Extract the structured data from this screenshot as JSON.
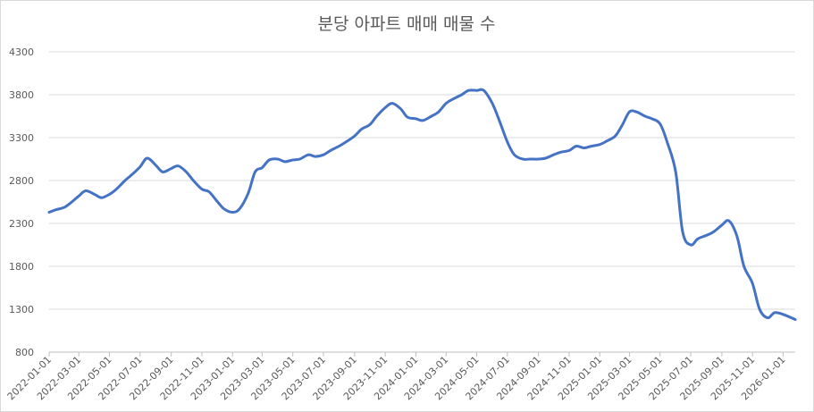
{
  "chart_data": {
    "type": "line",
    "title": "분당 아파트 매매 매물 수",
    "xlabel": "",
    "ylabel": "",
    "ylim": [
      800,
      4300
    ],
    "yticks": [
      800,
      1300,
      1800,
      2300,
      2800,
      3300,
      3800,
      4300
    ],
    "xlim": [
      "2022-01-01",
      "2026-01-25"
    ],
    "xticks": [
      "2022-01-01",
      "2022-03-01",
      "2022-05-01",
      "2022-07-01",
      "2022-09-01",
      "2022-11-01",
      "2023-01-01",
      "2023-03-01",
      "2023-05-01",
      "2023-07-01",
      "2023-09-01",
      "2023-11-01",
      "2024-01-01",
      "2024-03-01",
      "2024-05-01",
      "2024-07-01",
      "2024-09-01",
      "2024-11-01",
      "2025-01-01",
      "2025-03-01",
      "2025-05-01",
      "2025-07-01",
      "2025-09-01",
      "2025-11-01",
      "2026-01-01"
    ],
    "grid": true,
    "legend": "none",
    "color": "#4472c4",
    "series": [
      {
        "x": [
          "2022-01-01",
          "2022-01-15",
          "2022-02-01",
          "2022-02-15",
          "2022-03-01",
          "2022-03-15",
          "2022-04-01",
          "2022-04-15",
          "2022-05-01",
          "2022-05-15",
          "2022-06-01",
          "2022-06-15",
          "2022-07-01",
          "2022-07-15",
          "2022-08-01",
          "2022-08-15",
          "2022-09-01",
          "2022-09-15",
          "2022-10-01",
          "2022-10-15",
          "2022-11-01",
          "2022-11-15",
          "2022-12-01",
          "2022-12-15",
          "2023-01-01",
          "2023-01-15",
          "2023-02-01",
          "2023-02-15",
          "2023-03-01",
          "2023-03-15",
          "2023-04-01",
          "2023-04-15",
          "2023-05-01",
          "2023-05-15",
          "2023-06-01",
          "2023-06-15",
          "2023-07-01",
          "2023-07-15",
          "2023-08-01",
          "2023-08-15",
          "2023-09-01",
          "2023-09-15",
          "2023-10-01",
          "2023-10-15",
          "2023-11-01",
          "2023-11-15",
          "2023-12-01",
          "2023-12-15",
          "2024-01-01",
          "2024-01-15",
          "2024-02-01",
          "2024-02-15",
          "2024-03-01",
          "2024-03-15",
          "2024-04-01",
          "2024-04-15",
          "2024-05-01",
          "2024-05-15",
          "2024-06-01",
          "2024-06-15",
          "2024-07-01",
          "2024-07-15",
          "2024-08-01",
          "2024-08-15",
          "2024-09-01",
          "2024-09-15",
          "2024-10-01",
          "2024-10-15",
          "2024-11-01",
          "2024-11-15",
          "2024-12-01",
          "2024-12-15",
          "2025-01-01",
          "2025-01-15",
          "2025-02-01",
          "2025-02-15",
          "2025-03-01",
          "2025-03-15",
          "2025-04-01",
          "2025-04-15",
          "2025-05-01",
          "2025-05-15",
          "2025-06-01",
          "2025-06-15",
          "2025-07-01",
          "2025-07-15",
          "2025-08-01",
          "2025-08-15",
          "2025-09-01",
          "2025-09-15",
          "2025-10-01",
          "2025-10-15",
          "2025-11-01",
          "2025-11-15",
          "2025-12-01",
          "2025-12-15",
          "2026-01-01",
          "2026-01-25"
        ],
        "values": [
          2430,
          2460,
          2490,
          2550,
          2620,
          2680,
          2640,
          2600,
          2640,
          2700,
          2800,
          2870,
          2960,
          3060,
          2980,
          2900,
          2940,
          2970,
          2900,
          2800,
          2700,
          2670,
          2560,
          2470,
          2430,
          2470,
          2650,
          2900,
          2950,
          3040,
          3050,
          3020,
          3040,
          3050,
          3100,
          3080,
          3100,
          3150,
          3200,
          3250,
          3320,
          3400,
          3450,
          3550,
          3650,
          3700,
          3640,
          3540,
          3520,
          3500,
          3550,
          3600,
          3700,
          3750,
          3800,
          3850,
          3850,
          3850,
          3700,
          3500,
          3250,
          3100,
          3050,
          3050,
          3050,
          3060,
          3100,
          3130,
          3150,
          3200,
          3180,
          3200,
          3220,
          3260,
          3320,
          3450,
          3600,
          3600,
          3550,
          3520,
          3460,
          3250,
          2900,
          2200,
          2050,
          2120,
          2160,
          2200,
          2280,
          2330,
          2150,
          1800,
          1600,
          1300,
          1200,
          1260,
          1240,
          1180
        ]
      }
    ]
  }
}
